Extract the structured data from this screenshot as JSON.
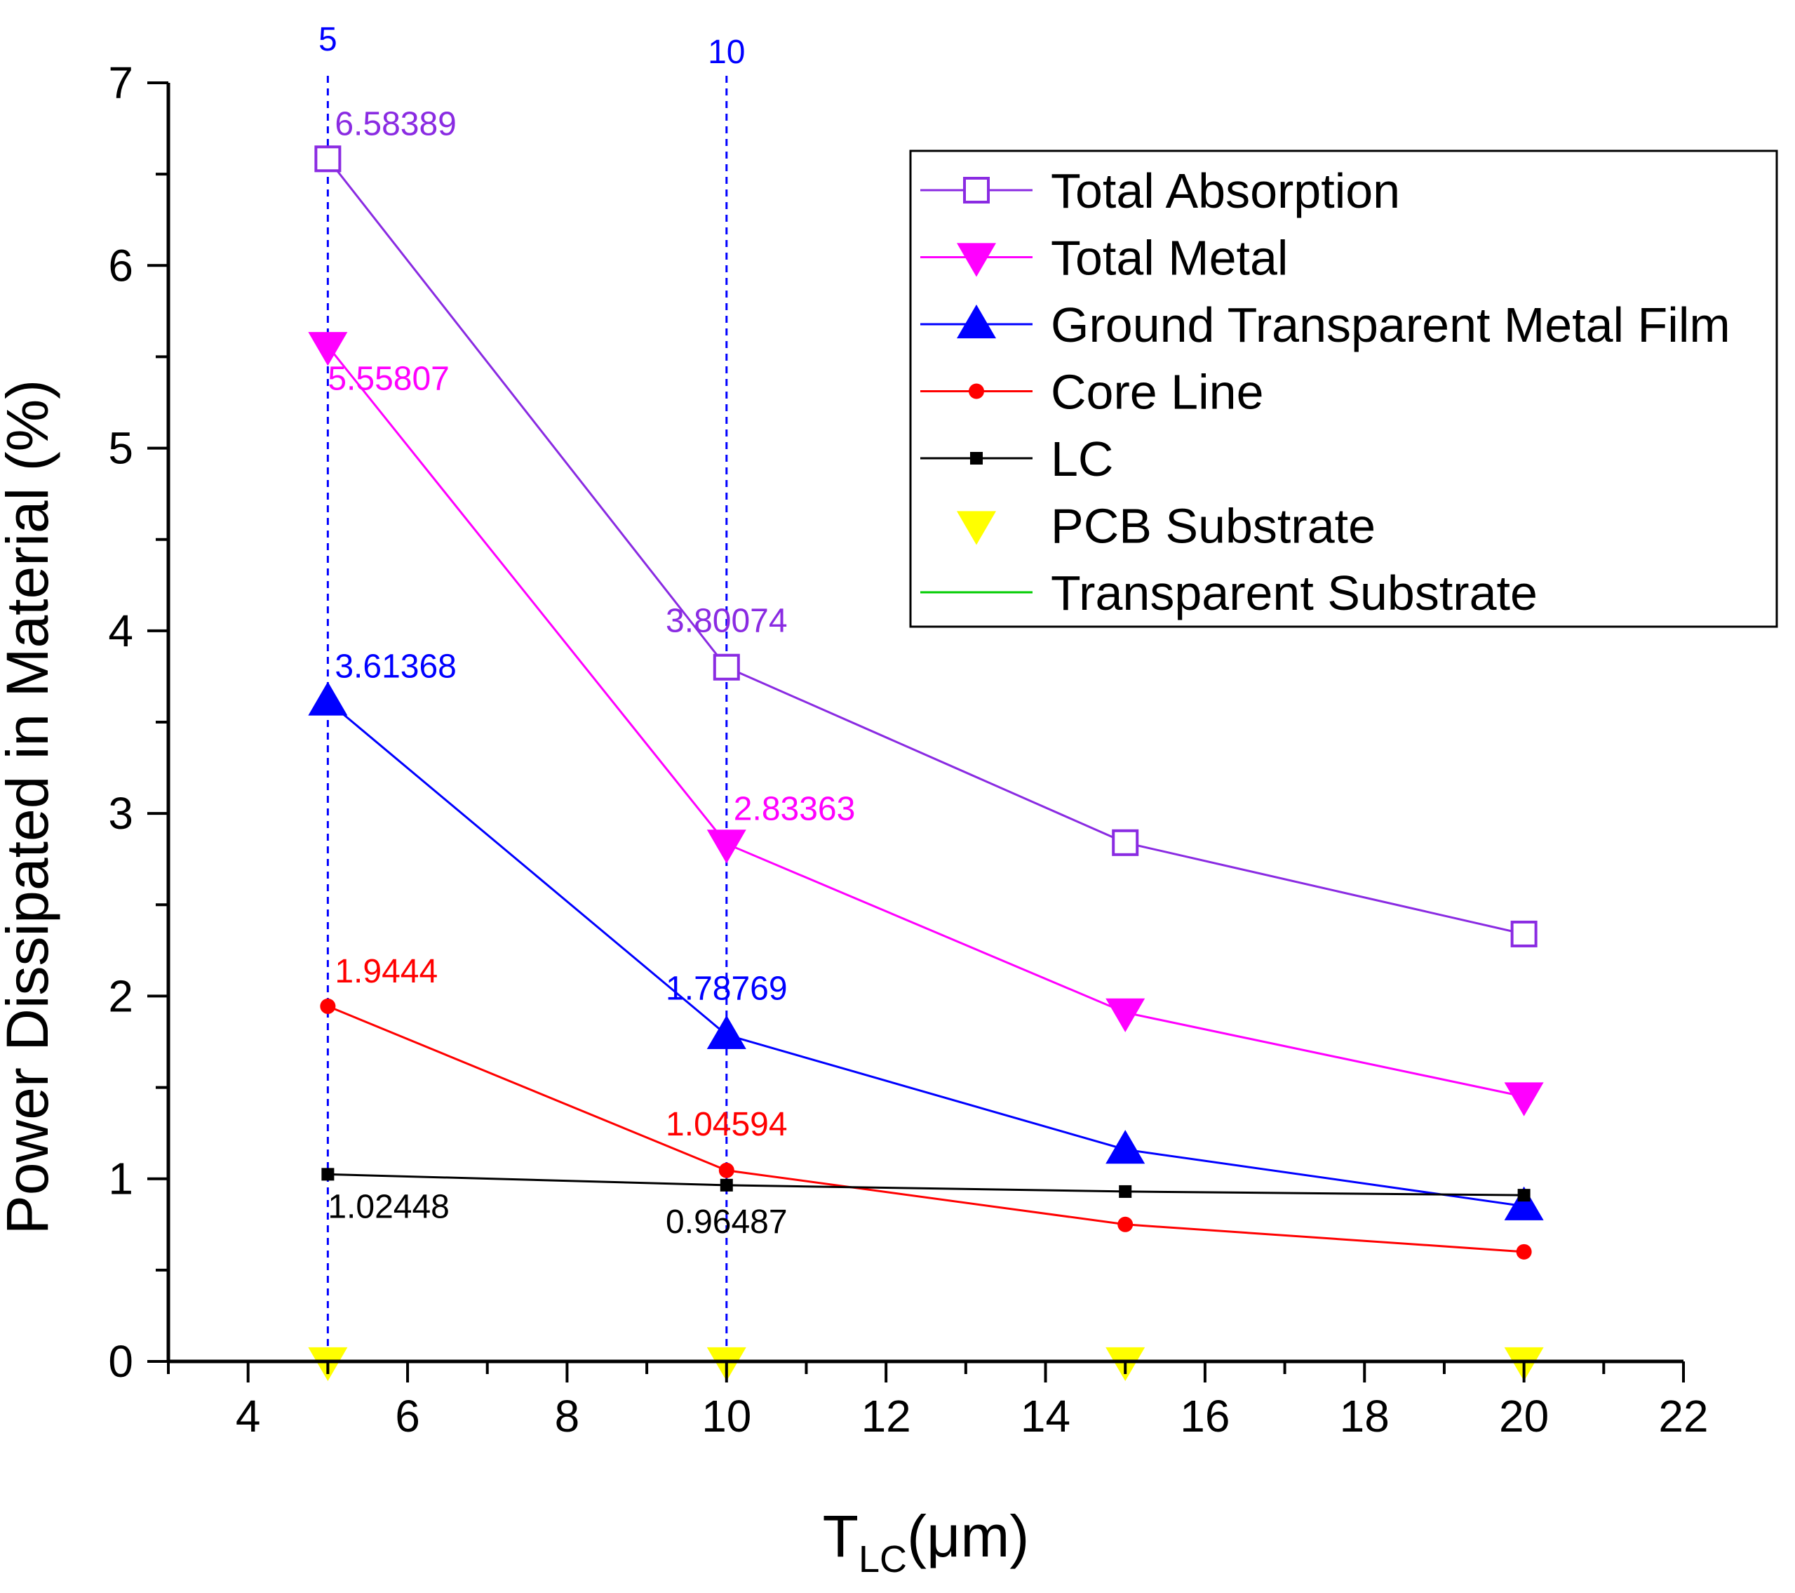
{
  "chart_data": {
    "type": "line",
    "title": "",
    "xlabel": "T",
    "xlabel_subscript": "LC",
    "xlabel_unit": "(μm)",
    "ylabel": "Power Dissipated in Material (%)",
    "xlim": [
      3,
      22
    ],
    "ylim": [
      0,
      7
    ],
    "x_major_ticks": [
      4,
      6,
      8,
      10,
      12,
      14,
      16,
      18,
      20,
      22
    ],
    "x_tick_labels": [
      "4",
      "6",
      "8",
      "10",
      "12",
      "14",
      "16",
      "18",
      "20",
      "22"
    ],
    "y_major_ticks": [
      0,
      1,
      2,
      3,
      4,
      5,
      6,
      7
    ],
    "y_tick_labels": [
      "0",
      "1",
      "2",
      "3",
      "4",
      "5",
      "6",
      "7"
    ],
    "grid": false,
    "legend_position": "top-right",
    "x": [
      5,
      10,
      15,
      20
    ],
    "series": [
      {
        "name": "Total Absorption",
        "values": [
          6.58389,
          3.80074,
          2.84,
          2.34
        ],
        "color": "#8a2be2",
        "marker": "open-square",
        "line": true
      },
      {
        "name": "Total Metal",
        "values": [
          5.55807,
          2.83363,
          1.91,
          1.45
        ],
        "color": "#ff00ff",
        "marker": "triangle-down",
        "line": true
      },
      {
        "name": "Ground Transparent Metal Film",
        "values": [
          3.61368,
          1.78769,
          1.16,
          0.85
        ],
        "color": "#0000ff",
        "marker": "triangle-up",
        "line": true
      },
      {
        "name": "Core Line",
        "values": [
          1.9444,
          1.04594,
          0.75,
          0.6
        ],
        "color": "#ff0000",
        "marker": "circle",
        "line": true
      },
      {
        "name": "LC",
        "values": [
          1.02448,
          0.96487,
          0.93,
          0.91
        ],
        "color": "#000000",
        "marker": "square",
        "line": true
      },
      {
        "name": "PCB Substrate",
        "values": [
          0.0,
          0.0,
          0.0,
          0.0
        ],
        "color": "#ffff00",
        "marker": "triangle-down",
        "line": false
      },
      {
        "name": "Transparent Substrate",
        "values": [
          0.0,
          0.0,
          0.0,
          0.0
        ],
        "color": "#00cc00",
        "marker": "none",
        "line": true
      }
    ],
    "reference_lines": [
      {
        "x": 5,
        "label": "5",
        "color": "#0000ff"
      },
      {
        "x": 10,
        "label": "10",
        "color": "#0000ff"
      }
    ],
    "annotations": [
      {
        "text": "6.58389",
        "x": 5,
        "y": 6.58389,
        "color": "#8a2be2",
        "position": "above-right"
      },
      {
        "text": "5.55807",
        "x": 5,
        "y": 5.55807,
        "color": "#ff00ff",
        "position": "below-right"
      },
      {
        "text": "3.61368",
        "x": 5,
        "y": 3.61368,
        "color": "#0000ff",
        "position": "above-right"
      },
      {
        "text": "1.9444",
        "x": 5,
        "y": 1.9444,
        "color": "#ff0000",
        "position": "above-right"
      },
      {
        "text": "1.02448",
        "x": 5,
        "y": 1.02448,
        "color": "#000000",
        "position": "below-right"
      },
      {
        "text": "3.80074",
        "x": 10,
        "y": 3.80074,
        "color": "#8a2be2",
        "position": "above"
      },
      {
        "text": "2.83363",
        "x": 10,
        "y": 2.83363,
        "color": "#ff00ff",
        "position": "above-right"
      },
      {
        "text": "1.78769",
        "x": 10,
        "y": 1.78769,
        "color": "#0000ff",
        "position": "above"
      },
      {
        "text": "1.04594",
        "x": 10,
        "y": 1.04594,
        "color": "#ff0000",
        "position": "above"
      },
      {
        "text": "0.96487",
        "x": 10,
        "y": 0.96487,
        "color": "#000000",
        "position": "below"
      }
    ]
  }
}
